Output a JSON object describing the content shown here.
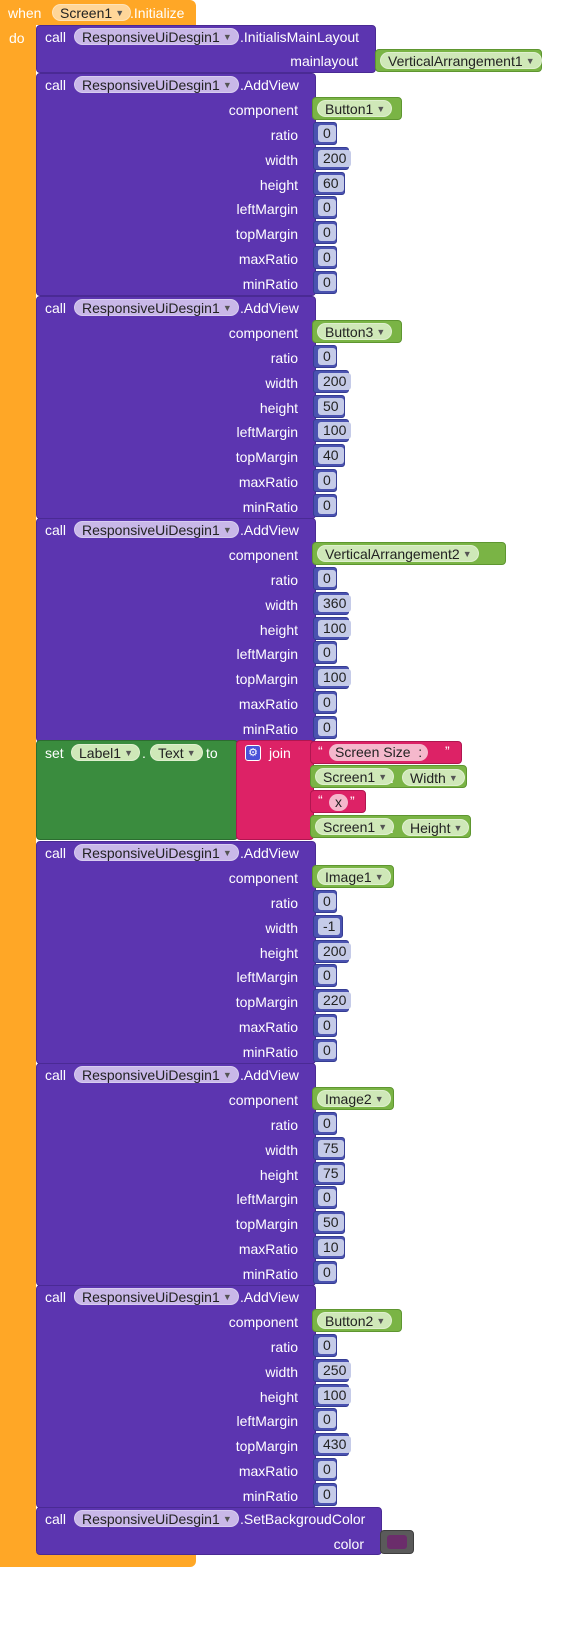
{
  "event": {
    "when": "when",
    "do": "do",
    "component": "Screen1",
    "event_name": ".Initialize"
  },
  "component_name": "ResponsiveUiDesgin1",
  "keywords": {
    "call": "call",
    "set": "set",
    "to": "to",
    "join": "join",
    "dot": "."
  },
  "init_call": {
    "method": ".InitialisMainLayout",
    "param_label": "mainlayout",
    "param_value": "VerticalArrangement1"
  },
  "param_labels": [
    "component",
    "ratio",
    "width",
    "height",
    "leftMargin",
    "topMargin",
    "maxRatio",
    "minRatio"
  ],
  "add_views": [
    {
      "method": ".AddView",
      "component": "Button1",
      "values": [
        "0",
        "200",
        "60",
        "0",
        "0",
        "0",
        "0"
      ]
    },
    {
      "method": ".AddView",
      "component": "Button3",
      "values": [
        "0",
        "200",
        "50",
        "100",
        "40",
        "0",
        "0"
      ]
    },
    {
      "method": ".AddView",
      "component": "VerticalArrangement2",
      "values": [
        "0",
        "360",
        "100",
        "0",
        "100",
        "0",
        "0"
      ]
    },
    {
      "method": ".AddView",
      "component": "Image1",
      "values": [
        "0",
        "-1",
        "200",
        "0",
        "220",
        "0",
        "0"
      ]
    },
    {
      "method": ".AddView",
      "component": "Image2",
      "values": [
        "0",
        "75",
        "75",
        "0",
        "50",
        "10",
        "0"
      ]
    },
    {
      "method": ".AddView",
      "component": "Button2",
      "values": [
        "0",
        "250",
        "100",
        "0",
        "430",
        "0",
        "0"
      ]
    }
  ],
  "set_block": {
    "component": "Label1",
    "property": "Text",
    "join_items": [
      {
        "type": "text",
        "value": "Screen Size  :"
      },
      {
        "type": "getter",
        "component": "Screen1",
        "property": "Width"
      },
      {
        "type": "text",
        "value": "x"
      },
      {
        "type": "getter",
        "component": "Screen1",
        "property": "Height"
      }
    ]
  },
  "bg_call": {
    "method": ".SetBackgroudColor",
    "param_label": "color",
    "color_value": "#6b2d6b"
  },
  "colors": {
    "event_orange": "#ffa726",
    "procedure_purple": "#5c35b0",
    "set_green": "#3a8c3e",
    "text_pink": "#dd2266",
    "component_green": "#7ab445",
    "math_blue": "#4a52b0"
  }
}
